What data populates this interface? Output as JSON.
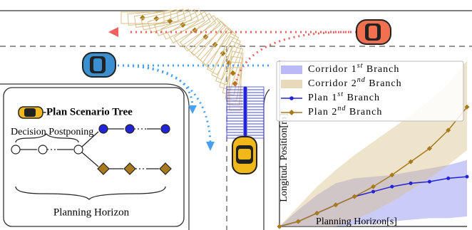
{
  "tree": {
    "title": "-Plan Scenario Tree",
    "postpone_label": "Decision Postponing",
    "horizon_label": "Planning Horizon"
  },
  "chart_data": {
    "type": "line",
    "xlabel": "Planning Horizon[s]",
    "ylabel": "Longitud. Position[m]",
    "x": [
      0,
      1,
      2,
      3,
      4,
      5,
      6,
      7,
      8,
      9,
      10
    ],
    "xlim": [
      0,
      10
    ],
    "ylim": [
      0,
      10
    ],
    "series": [
      {
        "name": "Corridor 1st Branch",
        "color": "#8c8cf0",
        "lower": [
          0,
          0,
          0,
          0,
          0.1,
          0.2,
          0.3,
          0.4,
          0.5,
          0.5,
          0.6
        ],
        "upper": [
          0,
          1.0,
          1.9,
          2.6,
          2.9,
          3.0,
          3.1,
          3.3,
          3.5,
          3.7,
          4.0
        ]
      },
      {
        "name": "Corridor 2nd Branch",
        "color": "#d9c08c",
        "lower": [
          0,
          0,
          0,
          0,
          0.4,
          0.9,
          1.5,
          2.2,
          2.9,
          3.7,
          4.6
        ],
        "upper": [
          0,
          1.2,
          2.4,
          3.4,
          4.3,
          5.1,
          5.9,
          6.7,
          7.6,
          8.6,
          10
        ]
      },
      {
        "name": "Plan 1st Branch",
        "color": "#2323d8",
        "values": [
          0,
          0.3,
          0.8,
          1.3,
          1.8,
          2.1,
          2.4,
          2.6,
          2.7,
          2.9,
          3.0
        ]
      },
      {
        "name": "Plan 2nd Branch",
        "color": "#a87a1c",
        "values": [
          0,
          0.3,
          0.8,
          1.3,
          1.8,
          2.4,
          3.1,
          3.9,
          4.7,
          5.8,
          7.2
        ]
      }
    ]
  }
}
